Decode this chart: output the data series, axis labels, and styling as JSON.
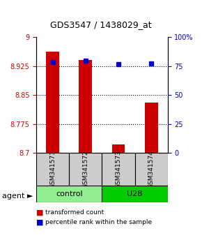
{
  "title": "GDS3547 / 1438029_at",
  "samples": [
    "GSM341571",
    "GSM341572",
    "GSM341573",
    "GSM341574"
  ],
  "red_values": [
    8.962,
    8.94,
    8.722,
    8.83
  ],
  "blue_values": [
    78.5,
    79.5,
    76.5,
    77.5
  ],
  "ylim_left": [
    8.7,
    9.0
  ],
  "ylim_right": [
    0,
    100
  ],
  "yticks_left": [
    8.7,
    8.775,
    8.85,
    8.925,
    9.0
  ],
  "yticks_right": [
    0,
    25,
    50,
    75,
    100
  ],
  "ytick_labels_left": [
    "8.7",
    "8.775",
    "8.85",
    "8.925",
    "9"
  ],
  "ytick_labels_right": [
    "0",
    "25",
    "50",
    "75",
    "100%"
  ],
  "groups": [
    {
      "label": "control",
      "span": [
        0,
        2
      ],
      "color": "#90EE90"
    },
    {
      "label": "U28",
      "span": [
        2,
        4
      ],
      "color": "#00CC00"
    }
  ],
  "agent_label": "agent",
  "bar_color": "#CC0000",
  "dot_color": "#0000CC",
  "bar_width": 0.4,
  "legend_red": "transformed count",
  "legend_blue": "percentile rank within the sample",
  "grid_color": "#000000",
  "sample_box_color": "#CCCCCC",
  "bar_base": 8.7
}
